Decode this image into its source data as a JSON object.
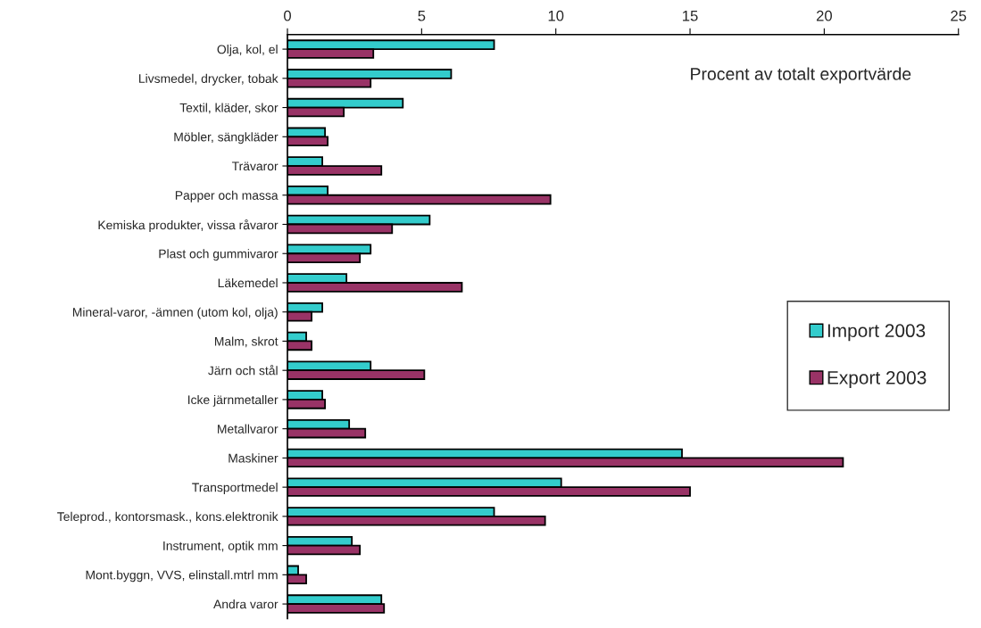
{
  "chart_data": {
    "type": "bar",
    "orientation": "horizontal",
    "categories": [
      "Olja, kol, el",
      "Livsmedel, drycker, tobak",
      "Textil, kläder, skor",
      "Möbler, sängkläder",
      "Trävaror",
      "Papper och massa",
      "Kemiska produkter, vissa råvaror",
      "Plast och gummivaror",
      "Läkemedel",
      "Mineral-varor, -ämnen (utom kol, olja)",
      "Malm, skrot",
      "Järn och stål",
      "Icke järnmetaller",
      "Metallvaror",
      "Maskiner",
      "Transportmedel",
      "Teleprod., kontorsmask., kons.elektronik",
      "Instrument, optik mm",
      "Mont.byggn, VVS, elinstall.mtrl mm",
      "Andra varor"
    ],
    "series": [
      {
        "name": "Import 2003",
        "color": "#33cccc",
        "values": [
          7.7,
          6.1,
          4.3,
          1.4,
          1.3,
          1.5,
          5.3,
          3.1,
          2.2,
          1.3,
          0.7,
          3.1,
          1.3,
          2.3,
          14.7,
          10.2,
          7.7,
          2.4,
          0.4,
          3.5
        ]
      },
      {
        "name": "Export 2003",
        "color": "#993366",
        "values": [
          3.2,
          3.1,
          2.1,
          1.5,
          3.5,
          9.8,
          3.9,
          2.7,
          6.5,
          0.9,
          0.9,
          5.1,
          1.4,
          2.9,
          20.7,
          15.0,
          9.6,
          2.7,
          0.7,
          3.6
        ]
      }
    ],
    "xlim": [
      0,
      25
    ],
    "xticks": [
      0,
      5,
      10,
      15,
      20,
      25
    ],
    "annotations": [
      "Procent av totalt exportvärde"
    ],
    "legend": "right",
    "grid": false
  }
}
